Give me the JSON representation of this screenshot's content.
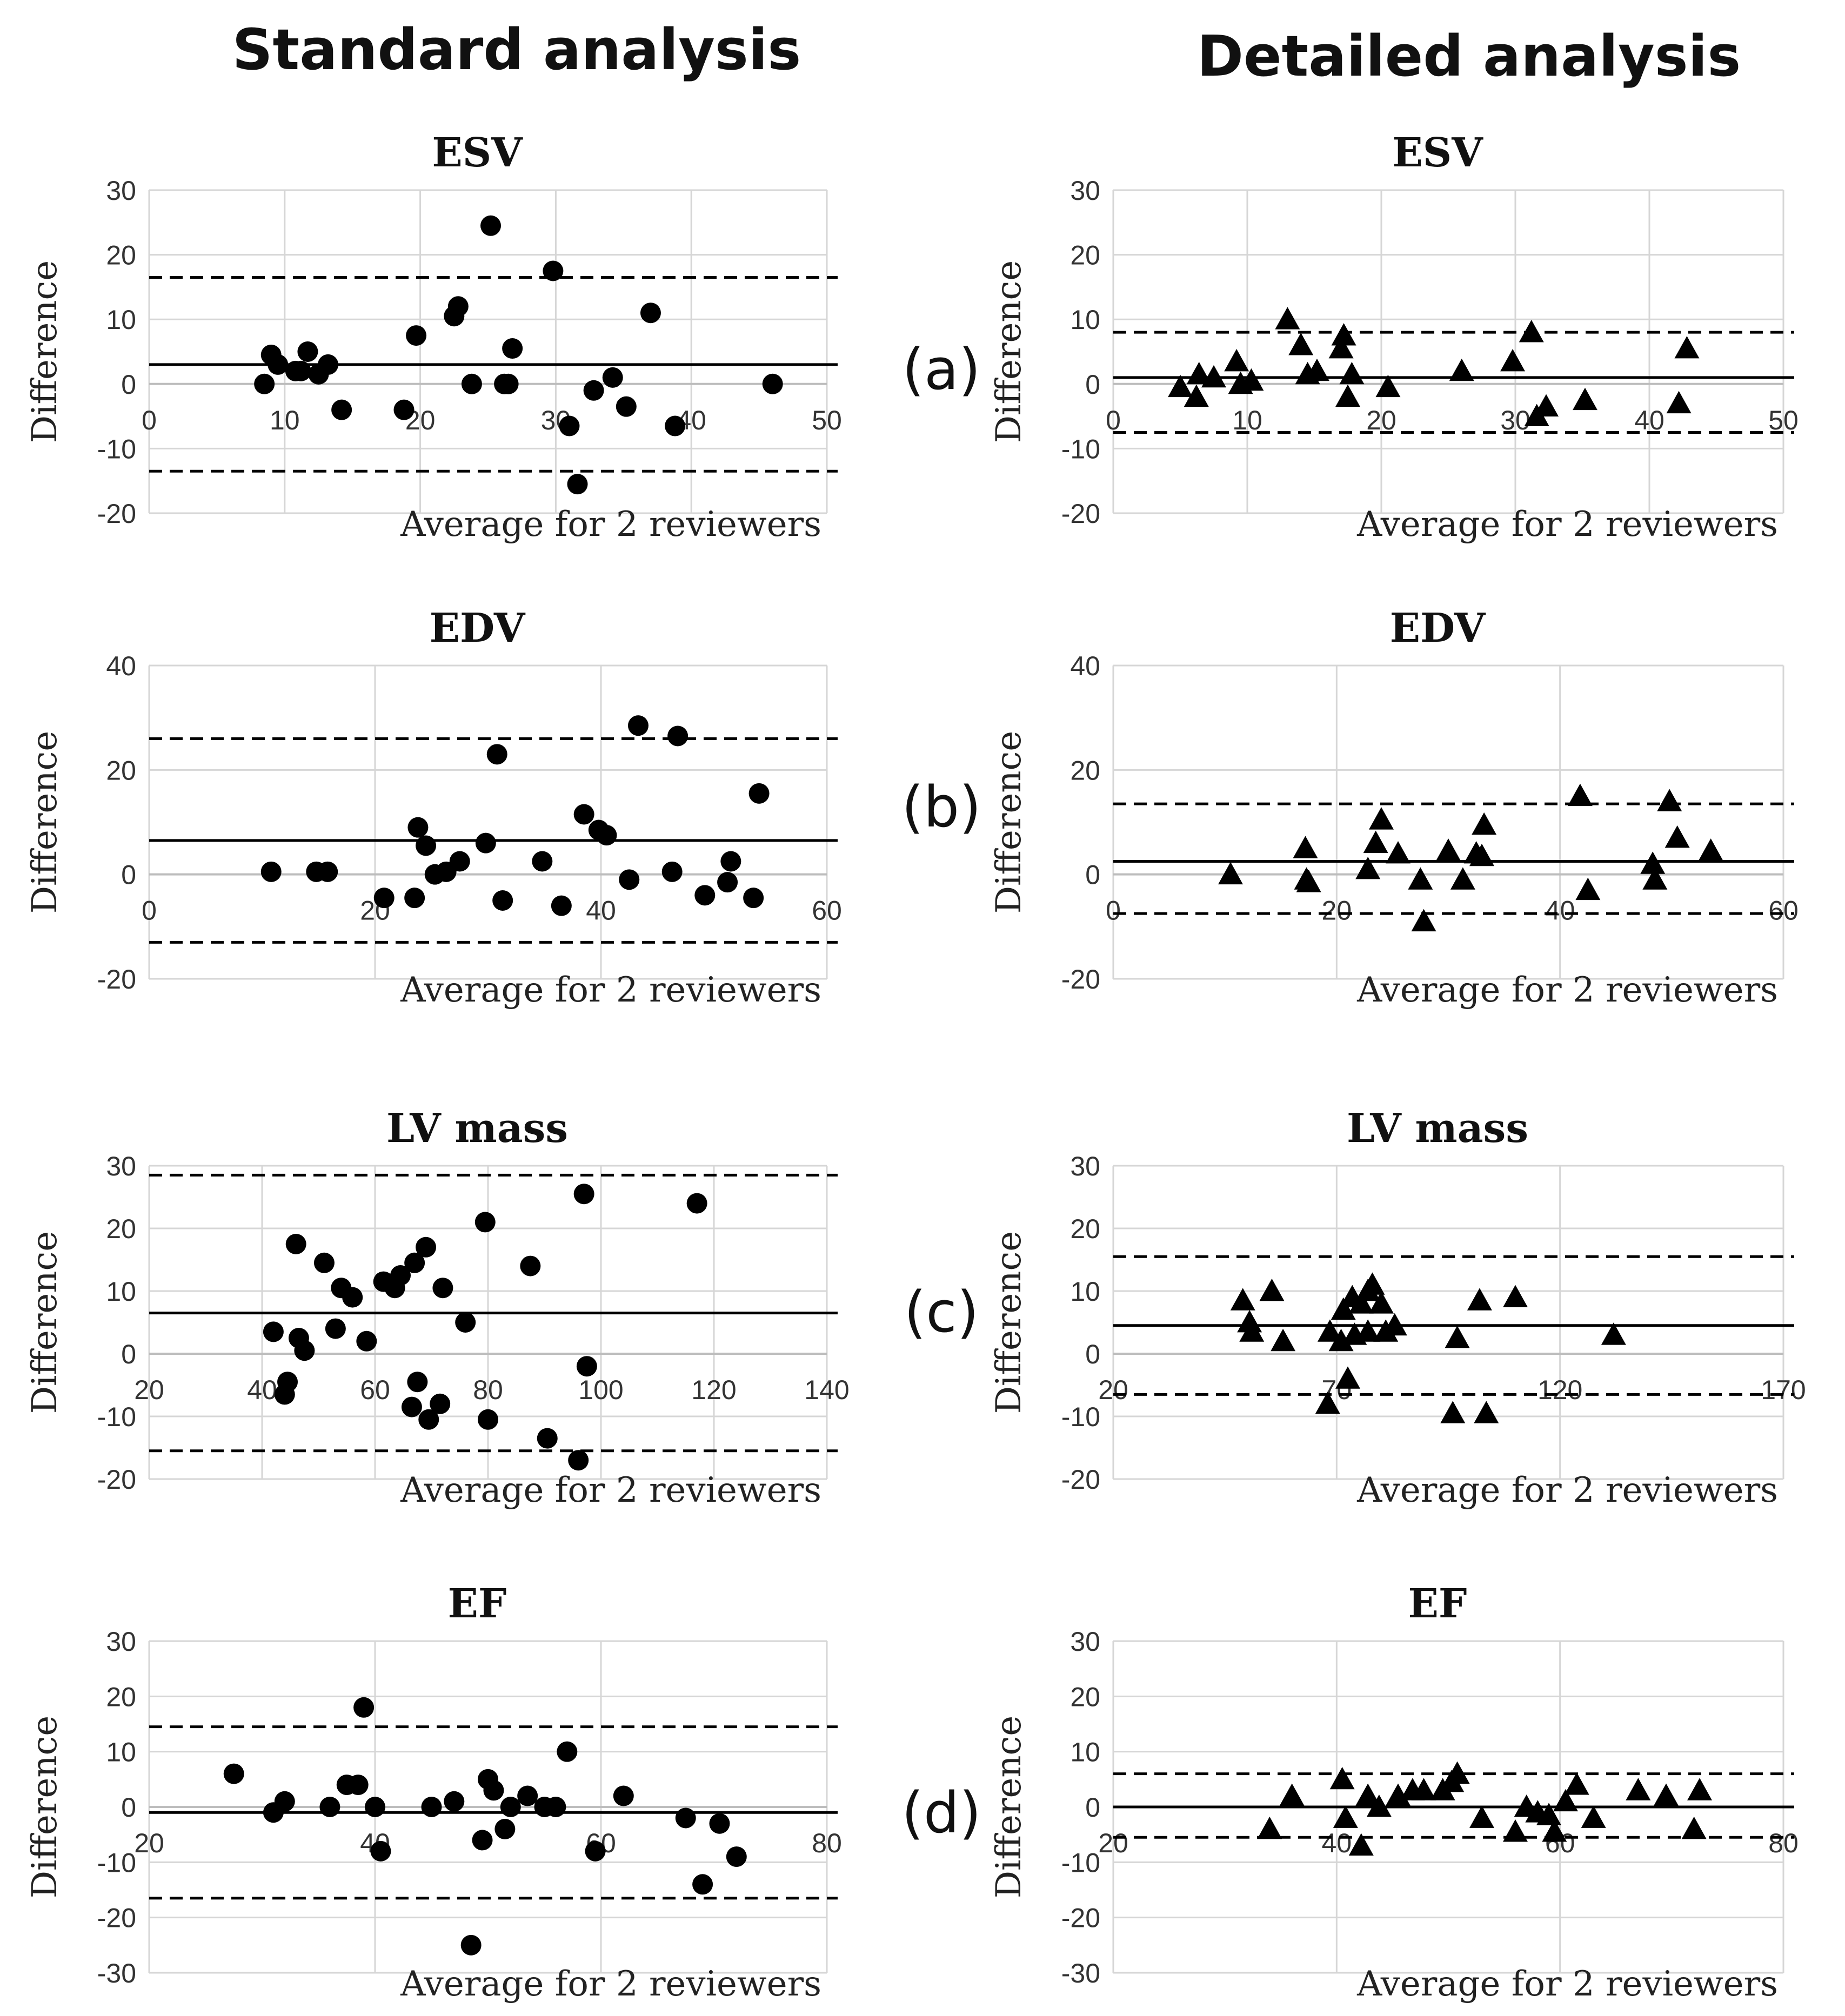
{
  "columns": {
    "left": "Standard analysis",
    "right": "Detailed analysis"
  },
  "panel_labels": [
    "(a)",
    "(b)",
    "(c)",
    "(d)"
  ],
  "chart_data": [
    {
      "type": "scatter",
      "title": "ESV",
      "column": "left",
      "row": 0,
      "marker": "circle",
      "xlabel": "Average for 2 reviewers",
      "ylabel": "Difference",
      "xlim": [
        0,
        50
      ],
      "ylim": [
        -20,
        30
      ],
      "xticks": [
        0,
        10,
        20,
        30,
        40,
        50
      ],
      "yticks": [
        -20,
        -10,
        0,
        10,
        20,
        30
      ],
      "mean": 3,
      "upper": 16.5,
      "lower": -13.5,
      "x": [
        8.5,
        9,
        9.5,
        10.8,
        11.2,
        11.7,
        12.5,
        13.2,
        14.2,
        18.8,
        19.7,
        22.5,
        22.8,
        23.8,
        25.2,
        26.2,
        26.5,
        26.8,
        29.8,
        31,
        31.6,
        32.8,
        34.2,
        35.2,
        37,
        38.8,
        46
      ],
      "y": [
        0,
        4.5,
        3,
        2,
        2,
        5,
        1.5,
        3,
        -4,
        -4,
        7.5,
        10.5,
        12,
        0,
        24.5,
        0,
        0,
        5.5,
        17.5,
        -6.5,
        -15.5,
        -1,
        1,
        -3.5,
        11,
        -6.5,
        0
      ]
    },
    {
      "type": "scatter",
      "title": "EDV",
      "column": "left",
      "row": 1,
      "marker": "circle",
      "xlabel": "Average for 2 reviewers",
      "ylabel": "Difference",
      "xlim": [
        0,
        60
      ],
      "ylim": [
        -20,
        40
      ],
      "xticks": [
        0,
        20,
        40,
        60
      ],
      "yticks": [
        -20,
        0,
        20,
        40
      ],
      "mean": 6.5,
      "upper": 26,
      "lower": -13,
      "x": [
        10.8,
        14.8,
        15.8,
        20.8,
        23.5,
        23.8,
        24.5,
        25.3,
        26.3,
        27.5,
        29.8,
        30.8,
        31.3,
        34.8,
        36.5,
        38.5,
        39.8,
        40.5,
        42.5,
        43.3,
        46.3,
        46.8,
        49.2,
        51.2,
        51.5,
        53.5,
        54
      ],
      "y": [
        0.5,
        0.5,
        0.5,
        -4.5,
        -4.5,
        9,
        5.5,
        0,
        0.5,
        2.5,
        6,
        23,
        -5,
        2.5,
        -6,
        11.5,
        8.5,
        7.5,
        -1,
        28.5,
        0.5,
        26.5,
        -4,
        -1.5,
        2.5,
        -4.5,
        15.5
      ]
    },
    {
      "type": "scatter",
      "title": "LV mass",
      "column": "left",
      "row": 2,
      "marker": "circle",
      "xlabel": "Average for 2 reviewers",
      "ylabel": "Difference",
      "xlim": [
        20,
        140
      ],
      "ylim": [
        -20,
        30
      ],
      "xticks": [
        20,
        40,
        60,
        80,
        100,
        120,
        140
      ],
      "yticks": [
        -20,
        -10,
        0,
        10,
        20,
        30
      ],
      "mean": 6.5,
      "upper": 28.5,
      "lower": -15.5,
      "x": [
        42,
        44,
        44.5,
        46,
        46.5,
        47.5,
        51,
        53,
        54,
        56,
        58.5,
        61.5,
        63.5,
        64.5,
        66.5,
        67,
        67.5,
        69,
        69.5,
        71.5,
        72,
        76,
        79.5,
        80,
        87.5,
        90.5,
        96,
        97,
        97.5,
        117
      ],
      "y": [
        3.5,
        -6.5,
        -4.5,
        17.5,
        2.5,
        0.5,
        14.5,
        4,
        10.5,
        9,
        2,
        11.5,
        10.5,
        12.5,
        -8.5,
        14.5,
        -4.5,
        17,
        -10.5,
        -8,
        10.5,
        5,
        21,
        -10.5,
        14,
        -13.5,
        -17,
        25.5,
        -2,
        24
      ]
    },
    {
      "type": "scatter",
      "title": "EF",
      "column": "left",
      "row": 3,
      "marker": "circle",
      "xlabel": "Average for 2 reviewers",
      "ylabel": "Difference",
      "xlim": [
        20,
        80
      ],
      "ylim": [
        -30,
        30
      ],
      "xticks": [
        20,
        40,
        60,
        80
      ],
      "yticks": [
        -30,
        -20,
        -10,
        0,
        10,
        20,
        30
      ],
      "mean": -1,
      "upper": 14.5,
      "lower": -16.5,
      "x": [
        27.5,
        31,
        32,
        36,
        37.5,
        38.5,
        39,
        40,
        40.5,
        45,
        47,
        48.5,
        49.5,
        50,
        50.5,
        51.5,
        52,
        53.5,
        55,
        56,
        57,
        59.5,
        62,
        67.5,
        69,
        70.5,
        72
      ],
      "y": [
        6,
        -1,
        1,
        0,
        4,
        4,
        18,
        0,
        -8,
        0,
        1,
        -25,
        -6,
        5,
        3,
        -4,
        0,
        2,
        0,
        0,
        10,
        -8,
        2,
        -2,
        -14,
        -3,
        -9
      ]
    },
    {
      "type": "scatter",
      "title": "ESV",
      "column": "right",
      "row": 0,
      "marker": "triangle",
      "xlabel": "Average for 2 reviewers",
      "ylabel": "Difference",
      "xlim": [
        0,
        50
      ],
      "ylim": [
        -20,
        30
      ],
      "xticks": [
        0,
        10,
        20,
        30,
        40,
        50
      ],
      "yticks": [
        -20,
        -10,
        0,
        10,
        20,
        30
      ],
      "mean": 1,
      "upper": 8,
      "lower": -7.5,
      "x": [
        5,
        6.2,
        6.4,
        7.5,
        9.2,
        9.5,
        10.3,
        13,
        14,
        14.5,
        15.2,
        17,
        17.2,
        17.5,
        17.8,
        20.5,
        26,
        29.8,
        31.2,
        31.6,
        32.3,
        35.2,
        42.2,
        42.8
      ],
      "y": [
        -0.5,
        -2,
        1.5,
        1,
        3.5,
        0,
        0.5,
        10,
        6,
        1.5,
        2,
        5.5,
        7.5,
        -2,
        1.5,
        -0.5,
        2,
        3.5,
        8,
        -5,
        -3.5,
        -2.5,
        -3,
        5.5
      ]
    },
    {
      "type": "scatter",
      "title": "EDV",
      "column": "right",
      "row": 1,
      "marker": "triangle",
      "xlabel": "Average for 2 reviewers",
      "ylabel": "Difference",
      "xlim": [
        0,
        60
      ],
      "ylim": [
        -20,
        40
      ],
      "xticks": [
        0,
        20,
        40,
        60
      ],
      "yticks": [
        -20,
        0,
        20,
        40
      ],
      "mean": 2.5,
      "upper": 13.5,
      "lower": -7.5,
      "x": [
        10.5,
        17.2,
        17.3,
        17.5,
        22.8,
        23.5,
        24,
        25.5,
        27.5,
        27.8,
        30,
        31.3,
        32.5,
        33,
        33.2,
        41.8,
        42.5,
        48.3,
        48.5,
        49.8,
        50.5,
        53.5
      ],
      "y": [
        0,
        5,
        -1,
        -1.5,
        1,
        6,
        10.5,
        4,
        -1,
        -9,
        4.5,
        -1,
        4,
        3.5,
        9.5,
        15,
        -3,
        2,
        -1,
        14,
        7,
        4.5
      ]
    },
    {
      "type": "scatter",
      "title": "LV mass",
      "column": "right",
      "row": 2,
      "marker": "triangle",
      "xlabel": "Average for 2 reviewers",
      "ylabel": "Difference",
      "xlim": [
        20,
        170
      ],
      "ylim": [
        -20,
        30
      ],
      "xticks": [
        20,
        70,
        120,
        170
      ],
      "yticks": [
        -20,
        -10,
        0,
        10,
        20,
        30
      ],
      "mean": 4.5,
      "upper": 15.5,
      "lower": -6.5,
      "x": [
        49,
        50.5,
        51,
        55.5,
        58,
        68,
        68.5,
        71,
        71.5,
        72.5,
        73.5,
        74,
        75.5,
        77,
        77,
        78,
        80,
        81,
        83,
        96,
        97,
        102,
        103.5,
        110,
        132
      ],
      "y": [
        8.5,
        5,
        3.5,
        10,
        2,
        -8,
        3.5,
        2,
        7,
        -4,
        9,
        3,
        8,
        3.5,
        10,
        11,
        8,
        3.5,
        4.5,
        -9.5,
        2.5,
        8.5,
        -9.5,
        9,
        3
      ]
    },
    {
      "type": "scatter",
      "title": "EF",
      "column": "right",
      "row": 3,
      "marker": "triangle",
      "xlabel": "Average for 2 reviewers",
      "ylabel": "Difference",
      "xlim": [
        20,
        80
      ],
      "ylim": [
        -30,
        30
      ],
      "xticks": [
        20,
        40,
        60,
        80
      ],
      "yticks": [
        -30,
        -20,
        -10,
        0,
        10,
        20,
        30
      ],
      "mean": 0,
      "upper": 6,
      "lower": -5.5,
      "x": [
        34,
        36,
        40.5,
        40.8,
        42.2,
        42.8,
        43.8,
        45.5,
        46.8,
        47.8,
        49.5,
        50.3,
        50.8,
        53,
        56,
        57,
        58,
        59,
        59.5,
        60.5,
        61.5,
        63,
        67,
        69.5,
        72,
        72.5
      ],
      "y": [
        -4,
        2,
        5,
        -2,
        -7,
        2,
        0,
        2,
        3,
        3,
        3,
        4.5,
        6,
        -2,
        -4.5,
        0,
        -1,
        -1.5,
        -4.5,
        1,
        4,
        -2,
        3,
        2,
        -4,
        3
      ]
    }
  ]
}
